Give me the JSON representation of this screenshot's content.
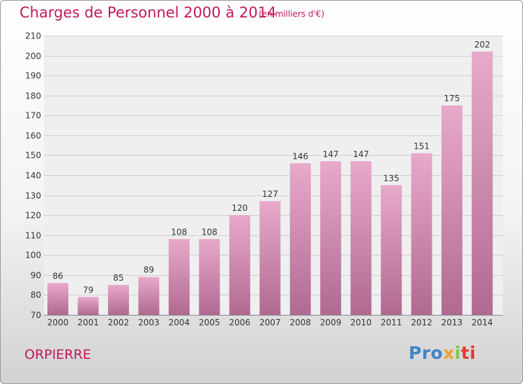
{
  "header": {
    "title": "Charges de Personnel 2000 à 2014",
    "subtitle": "(en milliers d'€)"
  },
  "footer": {
    "commune": "ORPIERRE",
    "logo": "Proxiti",
    "logo_colors": [
      "#3d86c6",
      "#8bc34a",
      "#f0a030",
      "#e53935"
    ]
  },
  "colors": {
    "bar_light": "#e8a9cb",
    "bar_dark": "#b06a92",
    "title": "#c2185b"
  },
  "chart_data": {
    "type": "bar",
    "title": "Charges de Personnel 2000 à 2014",
    "subtitle": "(en milliers d'€)",
    "xlabel": "",
    "ylabel": "",
    "categories": [
      "2000",
      "2001",
      "2002",
      "2003",
      "2004",
      "2005",
      "2006",
      "2007",
      "2008",
      "2009",
      "2010",
      "2011",
      "2012",
      "2013",
      "2014"
    ],
    "values": [
      86,
      79,
      85,
      89,
      108,
      108,
      120,
      127,
      146,
      147,
      147,
      135,
      151,
      175,
      202
    ],
    "ylim": [
      70,
      210
    ],
    "yticks": [
      70,
      80,
      90,
      100,
      110,
      120,
      130,
      140,
      150,
      160,
      170,
      180,
      190,
      200,
      210
    ],
    "grid": true,
    "legend": "none"
  }
}
